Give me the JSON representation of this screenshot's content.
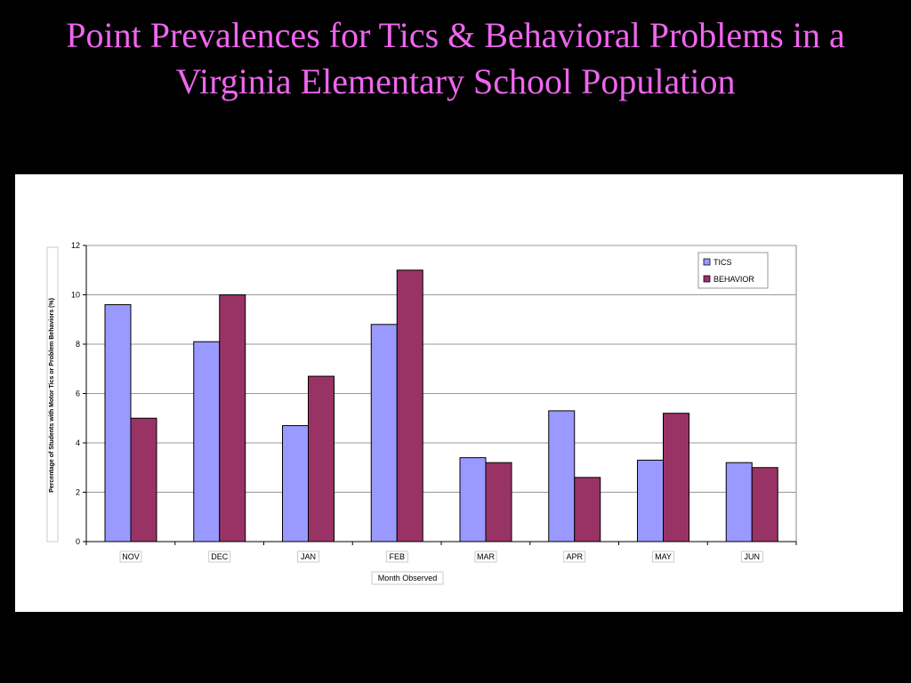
{
  "slide": {
    "title_line1": "Point Prevalences for Tics & Behavioral Problems in a",
    "title_line2": "Virginia Elementary School Population"
  },
  "colors": {
    "background": "#000000",
    "title": "#ee66ee",
    "tics": "#9999ff",
    "behavior": "#993366",
    "plot_area": "#ffffff",
    "gridline": "#999999"
  },
  "chart_data": {
    "type": "bar",
    "title": "",
    "xlabel": "Month Observed",
    "ylabel": "Percentage of Students with Motor Tics or Problem Behaviors (%)",
    "categories": [
      "NOV",
      "DEC",
      "JAN",
      "FEB",
      "MAR",
      "APR",
      "MAY",
      "JUN"
    ],
    "series": [
      {
        "name": "TICS",
        "values": [
          9.6,
          8.1,
          4.7,
          8.8,
          3.4,
          5.3,
          3.3,
          3.2
        ]
      },
      {
        "name": "BEHAVIOR",
        "values": [
          5.0,
          10.0,
          6.7,
          11.0,
          3.2,
          2.6,
          5.2,
          3.0
        ]
      }
    ],
    "ylim": [
      0,
      12
    ],
    "yticks": [
      0,
      2,
      4,
      6,
      8,
      10,
      12
    ],
    "grid": true,
    "legend_position": "top-right"
  }
}
